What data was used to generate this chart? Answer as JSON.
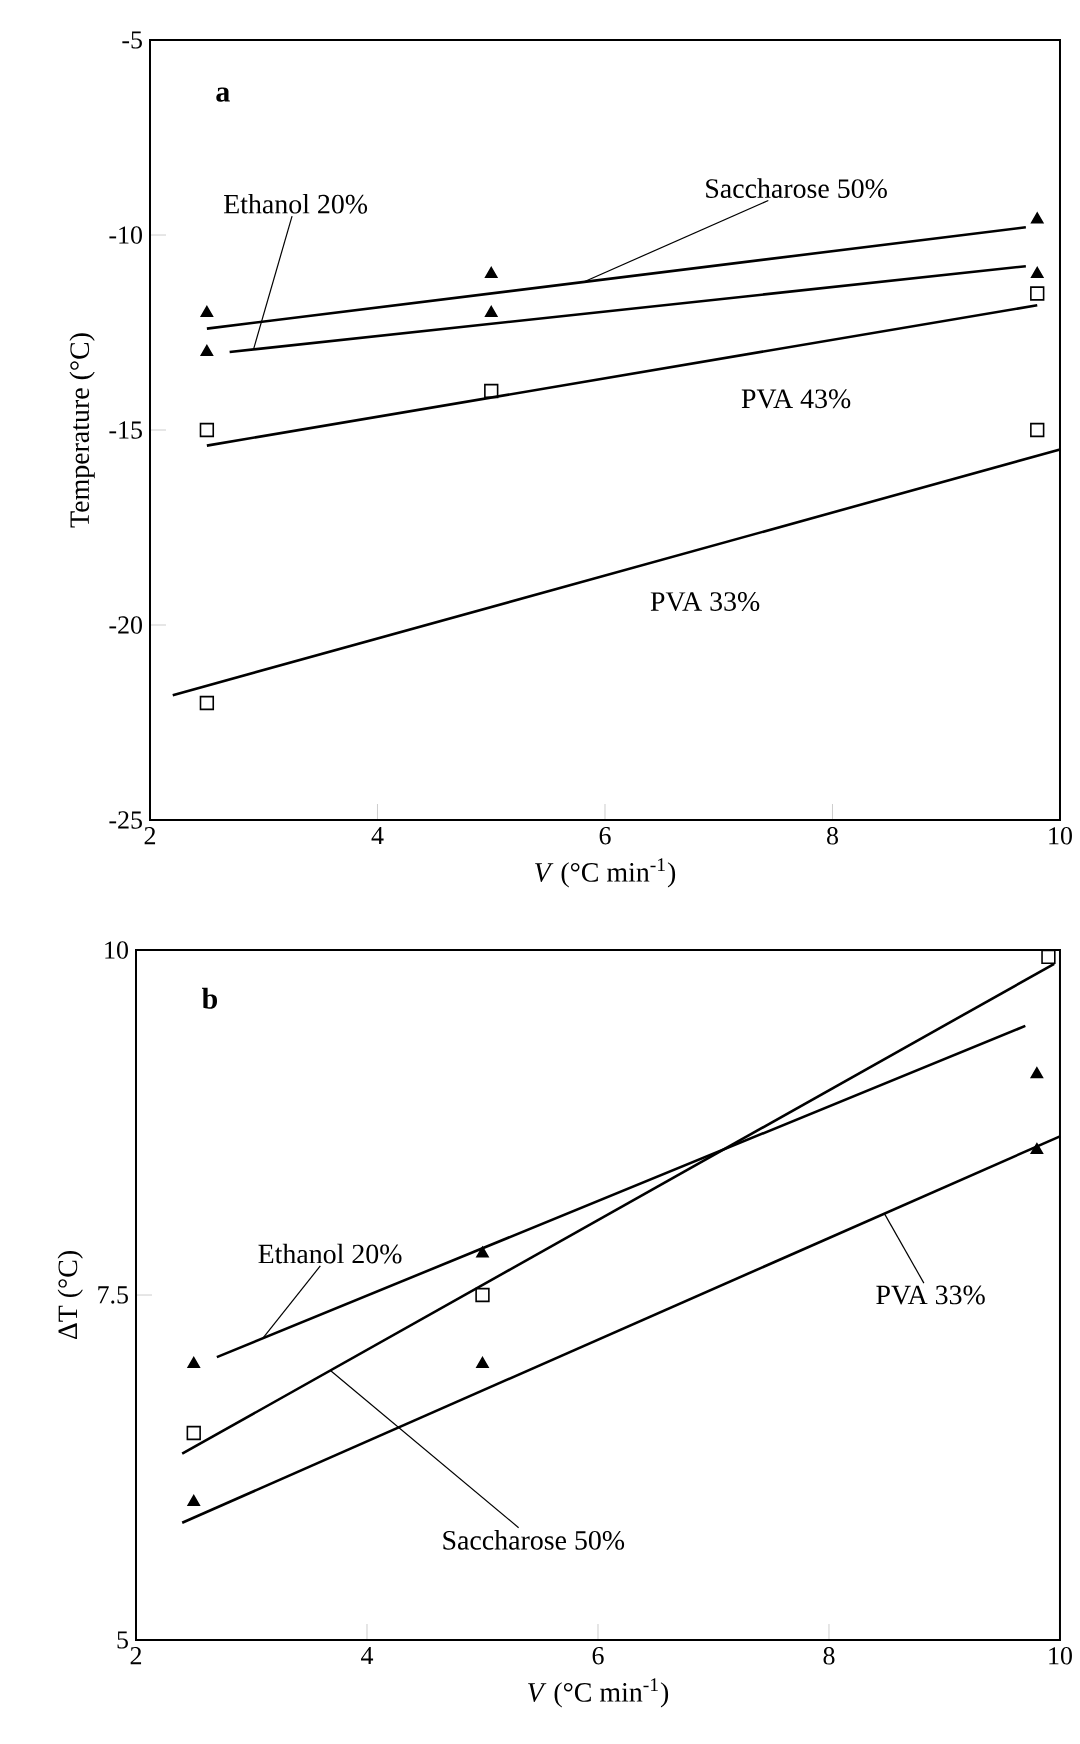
{
  "chart_data": [
    {
      "type": "scatter",
      "xlabel": "*V* (°C min$^{-1}$)",
      "ylabel": "Temperature (°C)",
      "xlim": [
        2,
        10
      ],
      "ylim": [
        -25,
        -5
      ],
      "xticks": [
        2,
        4,
        6,
        8,
        10
      ],
      "yticks": [
        -25,
        -20,
        -15,
        -10,
        -5
      ],
      "grid": false,
      "annotations": [
        "a"
      ],
      "series": [
        {
          "marker": "triangle",
          "color": "#000000",
          "x": [
            2.5,
            5,
            9.8
          ],
          "values": [
            -12,
            -11,
            -9.6
          ]
        },
        {
          "marker": "triangle",
          "color": "#000000",
          "x": [
            2.5,
            5,
            9.8
          ],
          "values": [
            -13,
            -12,
            -11
          ]
        },
        {
          "marker": "square",
          "color": "#000000",
          "x": [
            2.5,
            5,
            9.8
          ],
          "values": [
            -15,
            -14,
            -11.5
          ]
        },
        {
          "marker": "square",
          "color": "#000000",
          "x": [
            2.5,
            9.8
          ],
          "values": [
            -22,
            -15
          ]
        },
        {
          "type": "line",
          "name": "Saccharose 50%",
          "line_style": "solid",
          "color": "#000000",
          "x": [
            2.5,
            9.7
          ],
          "values": [
            -12.4,
            -9.8
          ]
        },
        {
          "type": "line",
          "name": "Ethanol 20%",
          "line_style": "solid",
          "color": "#000000",
          "x": [
            2.7,
            9.7
          ],
          "values": [
            -13,
            -10.8
          ]
        },
        {
          "type": "line",
          "name": "PVA 43%",
          "line_style": "solid",
          "color": "#000000",
          "x": [
            2.5,
            9.8
          ],
          "values": [
            -15.4,
            -11.8
          ]
        },
        {
          "type": "line",
          "name": "PVA 33%",
          "line_style": "solid",
          "color": "#000000",
          "x": [
            2.2,
            10
          ],
          "values": [
            -21.8,
            -15.5
          ]
        }
      ]
    },
    {
      "type": "scatter",
      "xlabel": "*V* (°C min$^{-1}$)",
      "ylabel": "ΔT (°C)",
      "xlim": [
        2,
        10
      ],
      "ylim": [
        5,
        10
      ],
      "xticks": [
        2,
        4,
        6,
        8,
        10
      ],
      "yticks": [
        5,
        7.5,
        10
      ],
      "grid": false,
      "annotations": [
        "b"
      ],
      "series": [
        {
          "marker": "square",
          "color": "#000000",
          "x": [
            2.5,
            5,
            9.9
          ],
          "values": [
            6.5,
            7.5,
            9.95
          ]
        },
        {
          "marker": "triangle",
          "color": "#000000",
          "x": [
            2.5,
            5,
            9.8
          ],
          "values": [
            7,
            7.8,
            9.1
          ]
        },
        {
          "marker": "triangle",
          "color": "#000000",
          "x": [
            2.5,
            5,
            9.8
          ],
          "values": [
            6,
            7,
            8.55
          ]
        },
        {
          "type": "line",
          "name": "Ethanol 20%",
          "line_style": "solid",
          "color": "#000000",
          "x": [
            2.7,
            9.7
          ],
          "values": [
            7.05,
            9.45
          ]
        },
        {
          "type": "line",
          "name": "Saccharose 50%",
          "line_style": "solid",
          "color": "#000000",
          "x": [
            2.4,
            9.95
          ],
          "values": [
            6.35,
            9.9
          ]
        },
        {
          "type": "line",
          "name": "PVA 33%",
          "line_style": "solid",
          "color": "#000000",
          "x": [
            2.4,
            10
          ],
          "values": [
            5.85,
            8.65
          ]
        }
      ]
    }
  ]
}
